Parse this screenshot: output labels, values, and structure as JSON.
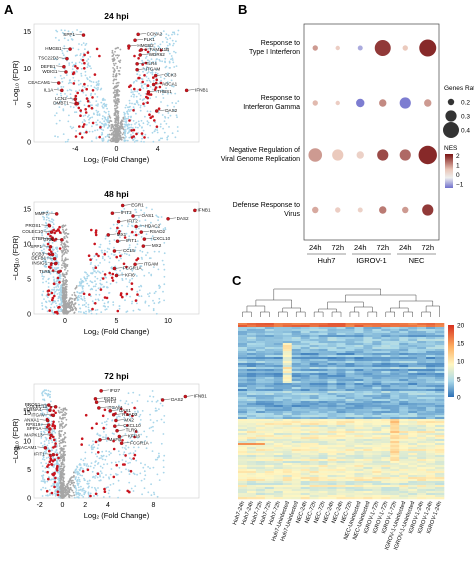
{
  "panels": {
    "A": "A",
    "B": "B",
    "C": "C"
  },
  "colors": {
    "sig": "#c9141e",
    "nonsig": "#a9d6ea",
    "ns_grey": "#a6a6a6",
    "nes_high": "#7a1212",
    "nes_mid": "#e9c4b6",
    "nes_low": "#6f6fcc",
    "heat_high": "#d7301f",
    "heat_low": "#2c6fb5"
  },
  "chart_data": [
    {
      "type": "scatter",
      "title": "24 hpi",
      "xlabel": "Log₂ (Fold Change)",
      "ylabel": "−Log₁₀ (FDR)",
      "xlim": [
        -8,
        8
      ],
      "ylim": [
        0,
        16
      ],
      "xticks": [
        "-4",
        "0",
        "4"
      ],
      "yticks": [
        "0",
        "5",
        "10",
        "15"
      ],
      "genes": [
        "SPP1",
        "HMGB1",
        "TSC22D3",
        "DEFB1",
        "WDIG1",
        "CEACAM1",
        "IL1A",
        "LCN2",
        "DMBT1",
        "CCNA2",
        "PLK1",
        "HMGB2",
        "FAM111B",
        "WDR62",
        "TLR4",
        "ITGAM",
        "CCK3",
        "ABCA1",
        "IFNB1",
        "THBS1",
        "DAS2"
      ],
      "points": [
        [
          -3.2,
          14.5
        ],
        [
          -4.5,
          12.6
        ],
        [
          -4.8,
          11.3
        ],
        [
          -5.1,
          10.2
        ],
        [
          -4.9,
          9.5
        ],
        [
          -5.6,
          8.0
        ],
        [
          -5.3,
          7.0
        ],
        [
          -4.0,
          5.8
        ],
        [
          -3.8,
          5.2
        ],
        [
          2.1,
          14.6
        ],
        [
          1.8,
          13.8
        ],
        [
          1.2,
          13.0
        ],
        [
          2.4,
          12.5
        ],
        [
          2.3,
          11.8
        ],
        [
          2.0,
          10.6
        ],
        [
          2.0,
          9.8
        ],
        [
          3.8,
          9.0
        ],
        [
          3.6,
          7.8
        ],
        [
          6.8,
          7.0
        ],
        [
          3.1,
          6.8
        ],
        [
          3.9,
          4.2
        ]
      ]
    },
    {
      "type": "scatter",
      "title": "48 hpi",
      "xlabel": "Log₂ (Fold Change)",
      "ylabel": "−Log₁₀ (FDR)",
      "xlim": [
        -3,
        13
      ],
      "ylim": [
        0,
        16
      ],
      "xticks": [
        "0",
        "5",
        "10"
      ],
      "yticks": [
        "0",
        "5",
        "10",
        "15"
      ],
      "genes": [
        "MMP7",
        "PROS1",
        "COLEC10",
        "CTBP",
        "SPP1",
        "CCB3",
        "DEFB1",
        "INSIG1",
        "TLR5",
        "GRN",
        "EGR1",
        "IFIT3",
        "OAS1",
        "IFIT2",
        "MX1",
        "IFIT1",
        "CCL5",
        "ITGAM",
        "FCGR1A",
        "KFI6",
        "HDAC2",
        "DAS2",
        "IFNB1",
        "RSAD2",
        "CXCL10",
        "MX2"
      ],
      "points": [
        [
          -0.8,
          14.3
        ],
        [
          -1.5,
          12.6
        ],
        [
          -1.3,
          11.7
        ],
        [
          -1.2,
          10.7
        ],
        [
          -1.4,
          9.6
        ],
        [
          -1.2,
          8.5
        ],
        [
          -1.0,
          7.9
        ],
        [
          -0.9,
          7.2
        ],
        [
          -0.6,
          6.0
        ],
        [
          -0.3,
          10.6
        ],
        [
          5.6,
          15.5
        ],
        [
          4.6,
          14.4
        ],
        [
          6.6,
          14.0
        ],
        [
          5.2,
          13.2
        ],
        [
          4.2,
          11.3
        ],
        [
          5.1,
          10.4
        ],
        [
          4.8,
          9.0
        ],
        [
          6.8,
          7.1
        ],
        [
          4.8,
          6.5
        ],
        [
          5.0,
          5.5
        ],
        [
          6.9,
          12.5
        ],
        [
          10.0,
          13.6
        ],
        [
          12.6,
          14.8
        ],
        [
          7.4,
          11.7
        ],
        [
          7.7,
          10.7
        ],
        [
          7.6,
          9.7
        ]
      ]
    },
    {
      "type": "scatter",
      "title": "72 hpi",
      "xlabel": "Log₂ (Fold Change)",
      "ylabel": "−Log₁₀ (FDR)",
      "xlim": [
        -2.5,
        12
      ],
      "ylim": [
        0,
        20
      ],
      "xticks": [
        "-2",
        "0",
        "2",
        "4",
        "8"
      ],
      "yticks": [
        "0",
        "5",
        "10",
        "15"
      ],
      "genes": [
        "PROS1",
        "COLEC13",
        "PLRNA4",
        "ITGAV",
        "ANXA1",
        "RPS19",
        "SPP1A",
        "MAPK13",
        "CEACAM1",
        "IFIT1",
        "IFI27",
        "EGR1",
        "IFIT3",
        "ITGAM",
        "OAS1",
        "RSAD2",
        "MX2",
        "CXCL10",
        "TLR9",
        "KFI16",
        "MAFB",
        "FCGR1A",
        "DAS2",
        "IFNB1"
      ],
      "points": [
        [
          -1.2,
          16.3
        ],
        [
          -0.6,
          16.0
        ],
        [
          -1.1,
          15.4
        ],
        [
          -0.8,
          14.5
        ],
        [
          -1.3,
          13.6
        ],
        [
          -1.2,
          12.8
        ],
        [
          -1.1,
          12.1
        ],
        [
          -1.0,
          11.0
        ],
        [
          -1.5,
          8.8
        ],
        [
          -0.8,
          7.6
        ],
        [
          3.4,
          18.8
        ],
        [
          2.9,
          17.4
        ],
        [
          3.0,
          16.8
        ],
        [
          3.2,
          15.8
        ],
        [
          4.2,
          15.3
        ],
        [
          4.5,
          14.6
        ],
        [
          4.7,
          13.6
        ],
        [
          4.6,
          12.6
        ],
        [
          4.8,
          11.8
        ],
        [
          5.0,
          10.8
        ],
        [
          3.3,
          10.2
        ],
        [
          5.2,
          9.6
        ],
        [
          8.8,
          17.2
        ],
        [
          10.8,
          17.8
        ]
      ]
    },
    {
      "type": "scatter",
      "title": "",
      "xlabel": "",
      "ylabel": "",
      "categories": [
        "24h",
        "72h",
        "24h",
        "72h",
        "24h",
        "72h"
      ],
      "groups": [
        "Huh7",
        "IGROV-1",
        "NEC"
      ],
      "pathways": [
        "Response to Type I Interferon",
        "Response to Interferon Gamma",
        "Negative Regulation of Viral Genome Replication",
        "Defense Response to Virus"
      ],
      "size_legend_title": "Genes Ratio",
      "size_legend_values": [
        "0.2",
        "0.3",
        "0.4"
      ],
      "color_legend_title": "NES",
      "color_legend_values": [
        "2",
        "1",
        "0",
        "-1"
      ],
      "points": [
        {
          "pathway": 0,
          "sample": 0,
          "ratio": 0.18,
          "nes": 1.3
        },
        {
          "pathway": 0,
          "sample": 1,
          "ratio": 0.16,
          "nes": 0.9
        },
        {
          "pathway": 0,
          "sample": 2,
          "ratio": 0.17,
          "nes": -0.6
        },
        {
          "pathway": 0,
          "sample": 3,
          "ratio": 0.4,
          "nes": 1.9
        },
        {
          "pathway": 0,
          "sample": 4,
          "ratio": 0.18,
          "nes": 1.0
        },
        {
          "pathway": 0,
          "sample": 5,
          "ratio": 0.42,
          "nes": 2.0
        },
        {
          "pathway": 1,
          "sample": 0,
          "ratio": 0.18,
          "nes": 1.1
        },
        {
          "pathway": 1,
          "sample": 1,
          "ratio": 0.16,
          "nes": 0.9
        },
        {
          "pathway": 1,
          "sample": 2,
          "ratio": 0.24,
          "nes": -1.2
        },
        {
          "pathway": 1,
          "sample": 3,
          "ratio": 0.22,
          "nes": 1.4
        },
        {
          "pathway": 1,
          "sample": 4,
          "ratio": 0.3,
          "nes": -1.1
        },
        {
          "pathway": 1,
          "sample": 5,
          "ratio": 0.22,
          "nes": 1.3
        },
        {
          "pathway": 2,
          "sample": 0,
          "ratio": 0.35,
          "nes": 1.3
        },
        {
          "pathway": 2,
          "sample": 1,
          "ratio": 0.3,
          "nes": 1.0
        },
        {
          "pathway": 2,
          "sample": 2,
          "ratio": 0.22,
          "nes": 0.8
        },
        {
          "pathway": 2,
          "sample": 3,
          "ratio": 0.3,
          "nes": 1.8
        },
        {
          "pathway": 2,
          "sample": 4,
          "ratio": 0.3,
          "nes": 1.6
        },
        {
          "pathway": 2,
          "sample": 5,
          "ratio": 0.45,
          "nes": 2.2
        },
        {
          "pathway": 3,
          "sample": 0,
          "ratio": 0.2,
          "nes": 1.2
        },
        {
          "pathway": 3,
          "sample": 1,
          "ratio": 0.18,
          "nes": 0.9
        },
        {
          "pathway": 3,
          "sample": 2,
          "ratio": 0.17,
          "nes": 0.8
        },
        {
          "pathway": 3,
          "sample": 3,
          "ratio": 0.22,
          "nes": 1.5
        },
        {
          "pathway": 3,
          "sample": 4,
          "ratio": 0.2,
          "nes": 1.3
        },
        {
          "pathway": 3,
          "sample": 5,
          "ratio": 0.3,
          "nes": 1.9
        }
      ]
    },
    {
      "type": "heatmap",
      "title": "",
      "xlabel": "",
      "ylabel": "",
      "colorbar_ticks": [
        "20",
        "15",
        "10",
        "5",
        "0"
      ],
      "zlim": [
        0,
        20
      ],
      "columns": [
        "Huh7-24h",
        "Huh7-24h",
        "Huh7-72h",
        "Huh7-72h",
        "Huh7-72h",
        "Huh7-Uninfected",
        "Huh7-Uninfected",
        "NEC-24h",
        "NEC-72h",
        "NEC-72h",
        "NEC-24h",
        "NEC-24h",
        "NEC-72h",
        "NEC-Uninfected",
        "NEC-Uninfected",
        "IGROV-1-72h",
        "IGROV-1-72h",
        "IGROV-1-72h",
        "IGROV-1-Uninfected",
        "IGROV-1-Uninfected",
        "IGROV-1-24h",
        "IGROV-1-24h",
        "IGROV-1-24h"
      ]
    }
  ]
}
